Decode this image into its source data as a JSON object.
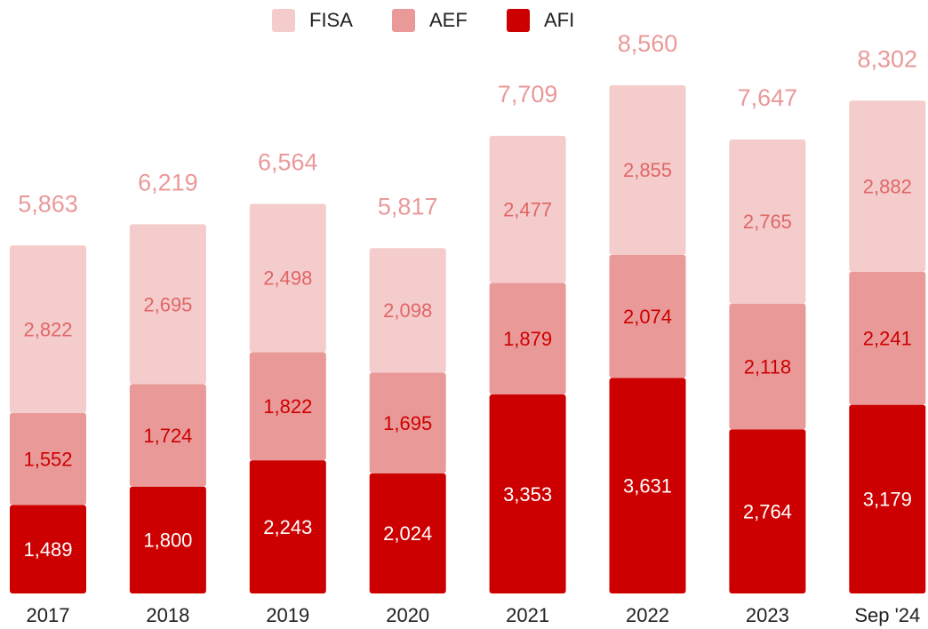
{
  "chart_data": {
    "type": "stacked-bar",
    "categories": [
      "2017",
      "2018",
      "2019",
      "2020",
      "2021",
      "2022",
      "2023",
      "Sep '24"
    ],
    "series": [
      {
        "name": "FISA",
        "color": "#f4cccc",
        "label_color": "#e06666",
        "values": [
          2822,
          2695,
          2498,
          2098,
          2477,
          2855,
          2765,
          2882
        ],
        "value_labels": [
          "2,822",
          "2,695",
          "2,498",
          "2,098",
          "2,477",
          "2,855",
          "2,765",
          "2,882"
        ]
      },
      {
        "name": "AEF",
        "color": "#ea9999",
        "label_color": "#cc0000",
        "values": [
          1552,
          1724,
          1822,
          1695,
          1879,
          2074,
          2118,
          2241
        ],
        "value_labels": [
          "1,552",
          "1,724",
          "1,822",
          "1,695",
          "1,879",
          "2,074",
          "2,118",
          "2,241"
        ]
      },
      {
        "name": "AFI",
        "color": "#cc0000",
        "label_color": "#ffffff",
        "values": [
          1489,
          1800,
          2243,
          2024,
          3353,
          3631,
          2764,
          3179
        ],
        "value_labels": [
          "1,489",
          "1,800",
          "2,243",
          "2,024",
          "3,353",
          "3,631",
          "2,764",
          "3,179"
        ]
      }
    ],
    "totals": [
      5863,
      6219,
      6564,
      5817,
      7709,
      8560,
      7647,
      8302
    ],
    "total_labels": [
      "5,863",
      "6,219",
      "6,564",
      "5,817",
      "7,709",
      "8,560",
      "7,647",
      "8,302"
    ],
    "total_color": "#ea9999",
    "legend": "top"
  }
}
